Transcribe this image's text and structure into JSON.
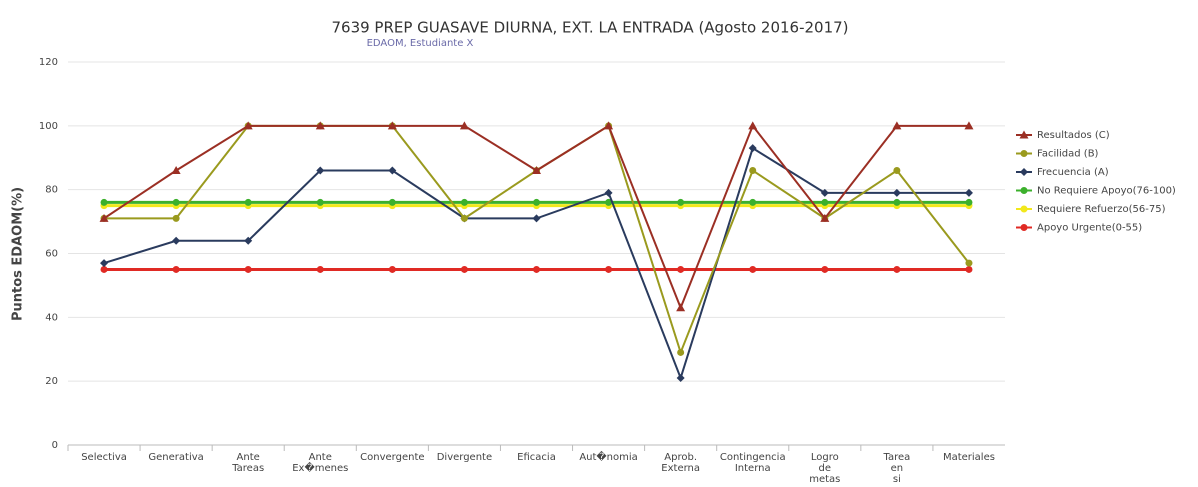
{
  "chart_data": {
    "type": "line",
    "title": "7639 PREP GUASAVE DIURNA, EXT. LA ENTRADA (Agosto 2016-2017)",
    "subtitle": "EDAOM, Estudiante  X",
    "y_label": "Puntos EDAOM(%)",
    "categories": [
      "Selectiva",
      "Generativa",
      "Ante Tareas",
      "Ante Ex�menes",
      "Convergente",
      "Divergente",
      "Eficacia",
      "Aut�nomia",
      "Aprob. Externa",
      "Contingencia Interna",
      "Logro de metas",
      "Tarea en si",
      "Materiales"
    ],
    "ylim": [
      0,
      120
    ],
    "yticks": [
      0,
      20,
      40,
      60,
      80,
      100,
      120
    ],
    "grid": true,
    "legend": "right",
    "series": [
      {
        "name": "Resultados (C)",
        "color": "#9b2f24",
        "marker": "triangle",
        "values": [
          71,
          86,
          100,
          100,
          100,
          100,
          86,
          100,
          43,
          100,
          71,
          100,
          100
        ]
      },
      {
        "name": "Facilidad (B)",
        "color": "#9a9a1e",
        "marker": "circle",
        "values": [
          71,
          71,
          100,
          100,
          100,
          71,
          86,
          100,
          29,
          86,
          71,
          86,
          57
        ]
      },
      {
        "name": "Frecuencia (A)",
        "color": "#2a3b5e",
        "marker": "diamond",
        "values": [
          57,
          64,
          64,
          86,
          86,
          71,
          71,
          79,
          21,
          93,
          79,
          79,
          79
        ]
      },
      {
        "name": "No Requiere Apoyo(76-100)",
        "color": "#3cb02c",
        "marker": "circle",
        "values": [
          76,
          76,
          76,
          76,
          76,
          76,
          76,
          76,
          76,
          76,
          76,
          76,
          76
        ]
      },
      {
        "name": "Requiere Refuerzo(56-75)",
        "color": "#f2e81c",
        "marker": "circle",
        "values": [
          75,
          75,
          75,
          75,
          75,
          75,
          75,
          75,
          75,
          75,
          75,
          75,
          75
        ]
      },
      {
        "name": "Apoyo Urgente(0-55)",
        "color": "#e02a24",
        "marker": "circle",
        "values": [
          55,
          55,
          55,
          55,
          55,
          55,
          55,
          55,
          55,
          55,
          55,
          55,
          55
        ]
      }
    ]
  }
}
